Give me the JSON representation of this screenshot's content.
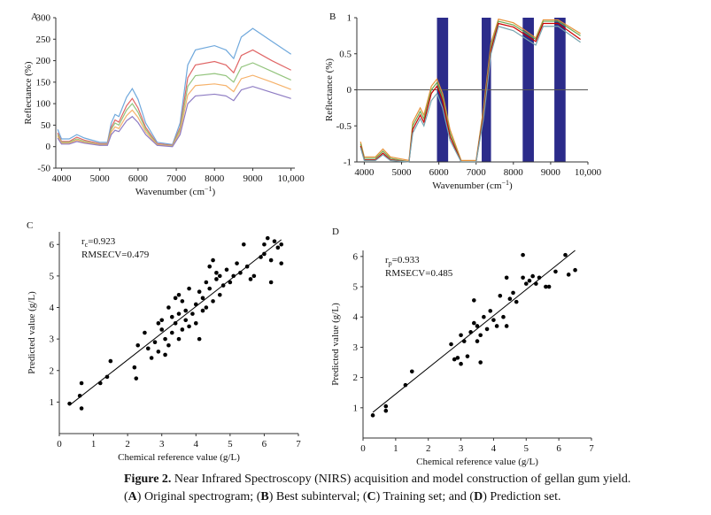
{
  "chart_data": [
    {
      "type": "line",
      "panel": "A",
      "ylabel": "Reflectance (%)",
      "xlabel": "Wavenumber (cm",
      "xlabel_sup": "−1",
      "xlabel_end": ")",
      "xlim": [
        3850,
        10100
      ],
      "ylim": [
        -50,
        300
      ],
      "xticks": [
        4000,
        5000,
        6000,
        7000,
        8000,
        9000,
        {
          "value": 10000,
          "label": "10,000"
        }
      ],
      "yticks": [
        -50,
        0,
        50,
        100,
        150,
        200,
        250,
        300
      ],
      "x": [
        3900,
        4000,
        4200,
        4400,
        4600,
        5000,
        5200,
        5300,
        5400,
        5500,
        5700,
        5850,
        6000,
        6200,
        6500,
        6900,
        7100,
        7300,
        7500,
        8000,
        8300,
        8500,
        8700,
        9000,
        9500,
        10000
      ],
      "series": [
        {
          "color": "#6fa8dc",
          "values": [
            40,
            18,
            18,
            28,
            20,
            10,
            10,
            55,
            75,
            70,
            115,
            135,
            110,
            55,
            10,
            5,
            55,
            190,
            225,
            235,
            225,
            205,
            255,
            275,
            245,
            215
          ]
        },
        {
          "color": "#e06666",
          "values": [
            32,
            12,
            12,
            22,
            15,
            7,
            7,
            45,
            62,
            57,
            95,
            112,
            90,
            45,
            7,
            3,
            45,
            160,
            190,
            198,
            190,
            172,
            212,
            225,
            200,
            178
          ]
        },
        {
          "color": "#93c47d",
          "values": [
            28,
            10,
            10,
            18,
            12,
            5,
            5,
            40,
            55,
            50,
            85,
            100,
            80,
            40,
            5,
            2,
            40,
            140,
            165,
            170,
            165,
            150,
            185,
            195,
            175,
            155
          ]
        },
        {
          "color": "#f6b26b",
          "values": [
            24,
            8,
            8,
            15,
            10,
            4,
            4,
            34,
            46,
            42,
            72,
            85,
            68,
            34,
            4,
            1,
            34,
            120,
            142,
            146,
            142,
            128,
            158,
            166,
            150,
            133
          ]
        },
        {
          "color": "#8e7cc3",
          "values": [
            20,
            6,
            6,
            12,
            8,
            3,
            3,
            28,
            38,
            35,
            60,
            70,
            56,
            28,
            3,
            0,
            28,
            100,
            118,
            122,
            118,
            107,
            132,
            140,
            126,
            112
          ]
        }
      ]
    },
    {
      "type": "line",
      "panel": "B",
      "ylabel": "Reflectance (%)",
      "xlabel": "Wavenumber (cm",
      "xlabel_sup": "−1",
      "xlabel_end": ")",
      "xlim": [
        3800,
        10000
      ],
      "ylim": [
        -1,
        1
      ],
      "xticks": [
        4000,
        5000,
        6000,
        7000,
        8000,
        9000,
        {
          "value": 10000,
          "label": "10,000"
        }
      ],
      "yticks": [
        -1,
        -0.5,
        0,
        0.5,
        1
      ],
      "zero_line": true,
      "intervals": [
        [
          5950,
          6250
        ],
        [
          7150,
          7400
        ],
        [
          8250,
          8550
        ],
        [
          9100,
          9400
        ]
      ],
      "interval_color": "#2b2b8a",
      "x": [
        3900,
        4000,
        4300,
        4500,
        4700,
        5200,
        5300,
        5500,
        5600,
        5800,
        5950,
        6100,
        6300,
        6600,
        7000,
        7200,
        7400,
        7600,
        8000,
        8300,
        8600,
        8800,
        9200,
        9800
      ],
      "series": [
        {
          "color": "#e69138",
          "values": [
            -0.72,
            -0.93,
            -0.93,
            -0.82,
            -0.93,
            -0.98,
            -0.45,
            -0.25,
            -0.35,
            0.05,
            0.15,
            -0.05,
            -0.55,
            -0.98,
            -0.98,
            -0.25,
            0.65,
            0.98,
            0.93,
            0.83,
            0.72,
            0.97,
            0.97,
            0.78
          ]
        },
        {
          "color": "#6aa84f",
          "values": [
            -0.75,
            -0.95,
            -0.95,
            -0.85,
            -0.95,
            -1,
            -0.5,
            -0.3,
            -0.4,
            0,
            0.1,
            -0.1,
            -0.6,
            -1,
            -1,
            -0.3,
            0.6,
            0.95,
            0.9,
            0.8,
            0.7,
            0.95,
            0.95,
            0.75
          ]
        },
        {
          "color": "#cc0000",
          "values": [
            -0.78,
            -0.97,
            -0.97,
            -0.88,
            -0.97,
            -1,
            -0.55,
            -0.35,
            -0.45,
            -0.05,
            0.05,
            -0.15,
            -0.65,
            -1,
            -1,
            -0.35,
            0.55,
            0.92,
            0.87,
            0.77,
            0.67,
            0.92,
            0.92,
            0.7
          ]
        },
        {
          "color": "#76a5af",
          "values": [
            -0.8,
            -0.98,
            -0.98,
            -0.9,
            -0.98,
            -1,
            -0.6,
            -0.4,
            -0.5,
            -0.15,
            -0.05,
            -0.25,
            -0.7,
            -1,
            -1,
            -0.4,
            0.5,
            0.88,
            0.82,
            0.72,
            0.62,
            0.88,
            0.88,
            0.66
          ]
        }
      ]
    },
    {
      "type": "scatter",
      "panel": "C",
      "ylabel": "Predicted  value (g/L)",
      "xlabel": "Chemical reference value (g/L)",
      "annotation": {
        "r": "r",
        "sub": "c",
        "rest": "=0.923",
        "line2": "RMSECV=0.479"
      },
      "xlim": [
        0,
        7
      ],
      "ylim": [
        0,
        6.4
      ],
      "xticks": [
        0,
        1,
        2,
        3,
        4,
        5,
        6,
        7
      ],
      "yticks": [
        1,
        2,
        3,
        4,
        5,
        6
      ],
      "color": "#000000",
      "x": [
        0.3,
        0.6,
        0.65,
        0.65,
        1.2,
        1.4,
        1.5,
        2.2,
        2.25,
        2.3,
        2.5,
        2.6,
        2.7,
        2.8,
        2.9,
        3.0,
        3.0,
        3.1,
        3.1,
        3.2,
        3.2,
        3.3,
        3.3,
        3.4,
        3.4,
        3.5,
        3.5,
        3.6,
        3.6,
        3.7,
        3.7,
        3.8,
        3.8,
        3.9,
        4.0,
        4.0,
        4.1,
        4.1,
        4.2,
        4.3,
        4.3,
        4.4,
        4.4,
        4.5,
        4.5,
        4.6,
        4.6,
        4.7,
        4.7,
        4.8,
        4.9,
        5.0,
        5.1,
        5.2,
        5.3,
        5.4,
        5.5,
        5.6,
        5.7,
        5.9,
        6.0,
        6.0,
        6.1,
        6.2,
        6.2,
        6.3,
        6.4,
        6.5,
        6.5,
        3.5,
        4.2,
        2.9
      ],
      "values": [
        0.95,
        1.2,
        0.8,
        1.6,
        1.6,
        1.8,
        2.3,
        2.1,
        1.75,
        2.8,
        3.2,
        2.7,
        2.4,
        2.9,
        2.6,
        3.6,
        3.3,
        2.5,
        3.0,
        4.0,
        2.8,
        3.7,
        3.2,
        4.3,
        3.5,
        3.8,
        3.0,
        4.2,
        3.3,
        3.6,
        3.9,
        4.6,
        3.4,
        3.8,
        4.1,
        3.5,
        4.5,
        3.0,
        3.9,
        4.8,
        4.0,
        5.3,
        4.6,
        5.5,
        4.2,
        4.9,
        5.1,
        4.4,
        5.0,
        4.7,
        5.2,
        4.8,
        5.0,
        5.4,
        5.1,
        6.0,
        5.3,
        4.9,
        5.0,
        5.6,
        6.0,
        5.7,
        6.2,
        5.5,
        4.8,
        6.1,
        5.9,
        5.4,
        6.0,
        4.4,
        4.3,
        3.5
      ],
      "fit": {
        "x": [
          0.3,
          6.5
        ],
        "y": [
          0.9,
          6.15
        ]
      }
    },
    {
      "type": "scatter",
      "panel": "D",
      "ylabel": "Predicted  value (g/L)",
      "xlabel": "Chemical reference value (g/L)",
      "annotation": {
        "r": "r",
        "sub": "p",
        "rest": "=0.933",
        "line2": "RMSECV=0.485"
      },
      "xlim": [
        0,
        7
      ],
      "ylim": [
        0,
        6.2
      ],
      "xticks": [
        0,
        1,
        2,
        3,
        4,
        5,
        6,
        7
      ],
      "yticks": [
        1,
        2,
        3,
        4,
        5,
        6
      ],
      "color": "#000000",
      "x": [
        0.3,
        0.7,
        0.7,
        1.3,
        1.5,
        2.7,
        2.8,
        2.9,
        3.0,
        3.0,
        3.1,
        3.2,
        3.3,
        3.4,
        3.4,
        3.5,
        3.6,
        3.6,
        3.7,
        3.8,
        3.9,
        4.0,
        4.1,
        4.2,
        4.3,
        4.4,
        4.4,
        4.5,
        4.6,
        4.9,
        4.9,
        5.0,
        5.1,
        5.2,
        5.3,
        5.4,
        5.6,
        5.7,
        5.9,
        6.2,
        6.3,
        6.5,
        3.5,
        4.7
      ],
      "values": [
        0.75,
        0.9,
        1.05,
        1.75,
        2.2,
        3.1,
        2.6,
        2.65,
        3.4,
        2.45,
        3.2,
        2.7,
        3.5,
        3.8,
        4.55,
        3.7,
        3.4,
        2.5,
        4.0,
        3.6,
        4.2,
        3.9,
        3.7,
        4.7,
        4.0,
        5.3,
        3.7,
        4.6,
        4.8,
        6.05,
        5.3,
        5.1,
        5.2,
        5.35,
        5.1,
        5.3,
        5.0,
        5.0,
        5.5,
        6.05,
        5.4,
        5.55,
        3.2,
        4.5
      ],
      "fit": {
        "x": [
          0.3,
          6.5
        ],
        "y": [
          0.85,
          6.2
        ]
      }
    }
  ],
  "caption": {
    "line1": [
      {
        "text": "Figure 2.",
        "bold": true
      },
      {
        "text": " Near Infrared Spectroscopy (NIRS) acquisition and model construction of gellan gum yield.",
        "bold": false
      }
    ],
    "line2": [
      {
        "text": "(",
        "bold": false
      },
      {
        "text": "A",
        "bold": true
      },
      {
        "text": ") Original spectrogram; (",
        "bold": false
      },
      {
        "text": "B",
        "bold": true
      },
      {
        "text": ") Best subinterval; (",
        "bold": false
      },
      {
        "text": "C",
        "bold": true
      },
      {
        "text": ") Training set; and (",
        "bold": false
      },
      {
        "text": "D",
        "bold": true
      },
      {
        "text": ") Prediction set.",
        "bold": false
      }
    ]
  }
}
